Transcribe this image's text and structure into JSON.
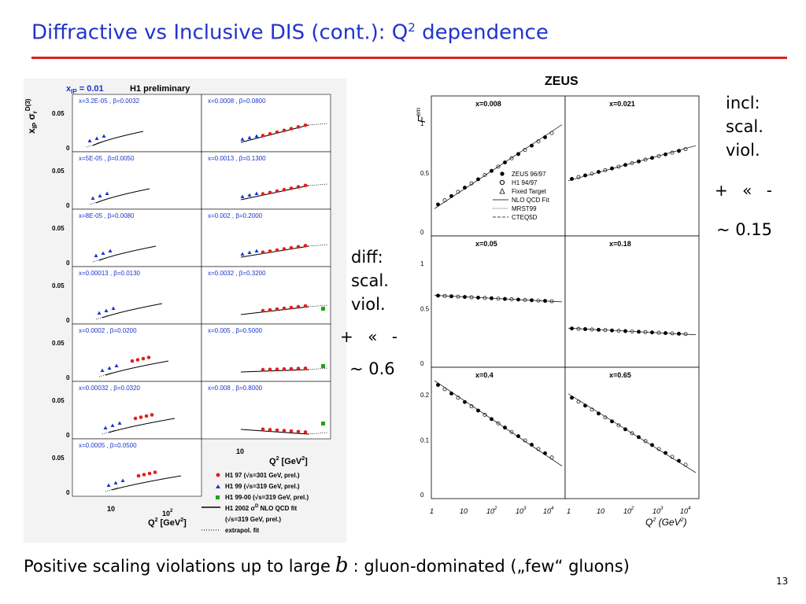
{
  "slide": {
    "title_main": "Diffractive vs Inclusive DIS (cont.): Q",
    "title_sup": "2",
    "title_tail": " dependence",
    "page_number": "13",
    "footer_pre": "Positive scaling violations up to large",
    "footer_symbol": "b",
    "footer_post": ": gluon-dominated („few“ gluons)"
  },
  "annotations": {
    "diff": {
      "lines": [
        "diff:",
        "scal.",
        "viol."
      ],
      "sign": "+  «  -",
      "approx": "~ 0.6"
    },
    "incl": {
      "lines": [
        "incl:",
        "scal.",
        "viol."
      ],
      "sign": "+  «  -",
      "approx": "~ 0.15"
    }
  },
  "h1_plot": {
    "header_xip": "x",
    "header_xip_sub": "IP",
    "header_xip_val": " = 0.01",
    "header_label": "H1 preliminary",
    "ylabel_parts": [
      "x",
      "IP",
      " σ",
      "r",
      "D(3)"
    ],
    "ytick_labels": [
      "0.05",
      "0"
    ],
    "left_panels": [
      "x=3.2E-05 , β=0.0032",
      "x=5E-05 , β=0.0050",
      "x=8E-05 , β=0.0080",
      "x=0.00013 , β=0.0130",
      "x=0.0002 , β=0.0200",
      "x=0.00032 , β=0.0320",
      "x=0.0005 , β=0.0500"
    ],
    "right_panels": [
      "x=0.0008 , β=0.0800",
      "x=0.0013 , β=0.1300",
      "x=0.002 , β=0.2000",
      "x=0.0032 , β=0.3200",
      "x=0.005 , β=0.5000",
      "x=0.008 , β=0.8000"
    ],
    "xtick_10": "10",
    "xtick_100": "10",
    "xtick_100_sup": "2",
    "xlabel": "Q",
    "xlabel_sup": "2",
    "xlabel_unit": " [GeV",
    "xlabel_unit_sup": "2",
    "xlabel_unit_close": "]",
    "legend": [
      "H1 97 (√s=301 GeV, prel.)",
      "H1 99 (√s=319 GeV, prel.)",
      "H1 99-00 (√s=319 GeV, prel.)",
      "H1 2002 σ",
      "(√s=319 GeV, prel.)",
      "extrapol. fit"
    ],
    "legend_fit_sup": "D",
    "legend_fit_tail": " NLO QCD fit",
    "colors": {
      "h1_97": "#e0201c",
      "h1_99": "#1a35cc",
      "h1_9900": "#1aa61a"
    }
  },
  "zeus_plot": {
    "title": "ZEUS",
    "ylabel": "F",
    "ylabel_sub": "2",
    "ylabel_sup": "em",
    "panels": [
      "x=0.008",
      "x=0.021",
      "x=0.05",
      "x=0.18",
      "x=0.4",
      "x=0.65"
    ],
    "ytick_top": [
      "1",
      "0.5",
      "0"
    ],
    "ytick_mid": [
      "1",
      "0.5",
      "0"
    ],
    "ytick_bot": [
      "0.2",
      "0.1",
      "0"
    ],
    "xtick_labels": [
      "1",
      "10",
      "10",
      "10",
      "10"
    ],
    "xtick_sups": [
      "",
      "",
      "2",
      "3",
      "4"
    ],
    "xlabel": "Q",
    "xlabel_sup": "2",
    "xlabel_unit": " (GeV",
    "xlabel_unit_sup": "2",
    "xlabel_unit_close": ")",
    "legend": [
      "ZEUS 96/97",
      "H1 94/97",
      "Fixed Target",
      "NLO QCD Fit",
      "MRST99",
      "CTEQ5D"
    ]
  }
}
